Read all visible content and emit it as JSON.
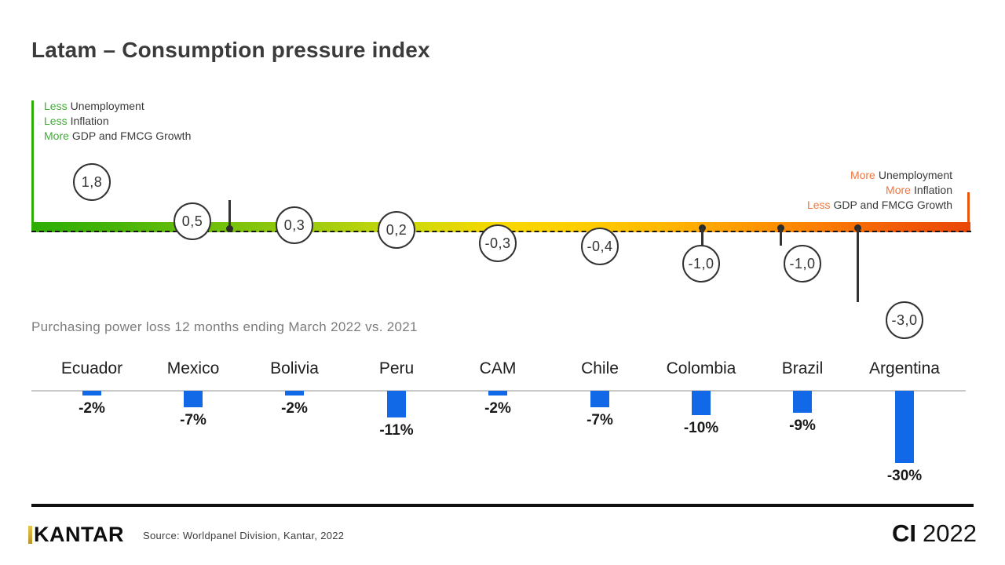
{
  "title": "Latam – Consumption pressure index",
  "subtitle": "Purchasing power loss 12 months ending March 2022 vs. 2021",
  "colors": {
    "gradient_start_green": "#2fae06",
    "gradient_end_red": "#e94607",
    "legend_green": "#3fae35",
    "legend_orange": "#f0763b",
    "bar_blue": "#1169e8"
  },
  "index_legend_left": {
    "line1_hl": "Less",
    "line1": "Unemployment",
    "line2_hl": "Less",
    "line2": "Inflation",
    "line3_hl": "More",
    "line3": "GDP and FMCG Growth"
  },
  "index_legend_right": {
    "line1_hl": "More",
    "line1": "Unemployment",
    "line2_hl": "More",
    "line2": "Inflation",
    "line3_hl": "Less",
    "line3": "GDP and FMCG Growth"
  },
  "countries": [
    "Ecuador",
    "Mexico",
    "Bolivia",
    "Peru",
    "CAM",
    "Chile",
    "Colombia",
    "Brazil",
    "Argentina"
  ],
  "index_labels": [
    "1,8",
    "0,5",
    "0,3",
    "0,2",
    "-0,3",
    "-0,4",
    "-1,0",
    "-1,0",
    "-3,0"
  ],
  "bar_labels": [
    "-2%",
    "-7%",
    "-2%",
    "-11%",
    "-2%",
    "-7%",
    "-10%",
    "-9%",
    "-30%"
  ],
  "footer": {
    "logo": "KANTAR",
    "source": "Source: Worldpanel Division, Kantar, 2022",
    "badge_bold": "CI",
    "badge_year": "2022"
  },
  "chart_data": [
    {
      "type": "scatter",
      "title": "Latam – Consumption pressure index",
      "categories": [
        "Ecuador",
        "Mexico",
        "Bolivia",
        "Peru",
        "CAM",
        "Chile",
        "Colombia",
        "Brazil",
        "Argentina"
      ],
      "values": [
        1.8,
        0.5,
        0.3,
        0.2,
        -0.3,
        -0.4,
        -1.0,
        -1.0,
        -3.0
      ],
      "value_labels": [
        "1,8",
        "0,5",
        "0,3",
        "0,2",
        "-0,3",
        "-0,4",
        "-1,0",
        "-1,0",
        "-3,0"
      ],
      "scale": "horizontal green-to-red gradient, positive (green) left = less unemployment/inflation & more GDP and FMCG growth, negative (red) right = more unemployment/inflation & less GDP and FMCG growth",
      "legend_left": "Less Unemployment, Less Inflation, More GDP and FMCG Growth",
      "legend_right": "More Unemployment, More Inflation, Less GDP and FMCG Growth"
    },
    {
      "type": "bar",
      "title": "Purchasing power loss 12 months ending March 2022 vs. 2021",
      "categories": [
        "Ecuador",
        "Mexico",
        "Bolivia",
        "Peru",
        "CAM",
        "Chile",
        "Colombia",
        "Brazil",
        "Argentina"
      ],
      "values": [
        -2,
        -7,
        -2,
        -11,
        -2,
        -7,
        -10,
        -9,
        -30
      ],
      "unit": "%",
      "bar_color": "#1169e8",
      "ylim": [
        -32,
        0
      ],
      "grid": false,
      "legend_position": "none"
    }
  ]
}
